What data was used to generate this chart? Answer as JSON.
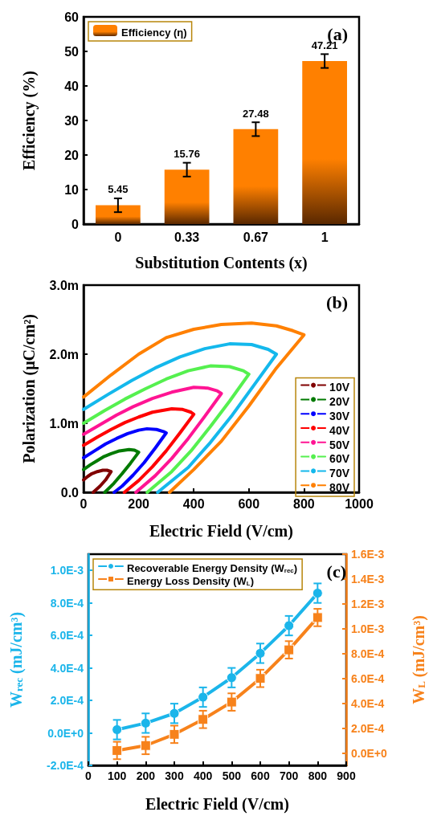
{
  "chart_data": [
    {
      "type": "bar",
      "xlabel": "Substitution Contents (x)",
      "ylabel": "Efficiency (%)",
      "categories": [
        "0",
        "0.33",
        "0.67",
        "1"
      ],
      "series": [
        {
          "name": "Efficiency (η)",
          "color": "#ff8000",
          "values": [
            5.45,
            15.76,
            27.48,
            47.21
          ],
          "errors": [
            2,
            2,
            2,
            2
          ]
        }
      ],
      "data_labels": true,
      "ylim": [
        0,
        60
      ],
      "yticks": [
        0,
        10,
        20,
        30,
        40,
        50,
        60
      ],
      "legend": "top left",
      "annotations": [
        "(a)"
      ]
    },
    {
      "type": "line",
      "xlabel": "Electric Field (V/cm)",
      "ylabel": "Polarization (μC/cm²)",
      "marker": "none",
      "series": [
        {
          "name": "10V",
          "color": "#800000",
          "x": [
            0,
            15,
            30,
            50,
            70,
            85,
            100,
            80,
            60,
            35
          ],
          "values": [
            0.18,
            0.23,
            0.27,
            0.3,
            0.32,
            0.32,
            0.3,
            0.18,
            0.09,
            0
          ]
        },
        {
          "name": "20V",
          "color": "#007a00",
          "x": [
            0,
            25,
            50,
            75,
            100,
            130,
            165,
            185,
            200,
            170,
            140,
            110,
            77
          ],
          "values": [
            0.33,
            0.4,
            0.46,
            0.52,
            0.56,
            0.6,
            0.62,
            0.61,
            0.58,
            0.42,
            0.27,
            0.13,
            0
          ]
        },
        {
          "name": "30V",
          "color": "#0000ff",
          "x": [
            0,
            40,
            80,
            120,
            160,
            200,
            230,
            265,
            290,
            300,
            260,
            220,
            180,
            140,
            111
          ],
          "values": [
            0.5,
            0.6,
            0.7,
            0.78,
            0.85,
            0.9,
            0.92,
            0.91,
            0.88,
            0.86,
            0.64,
            0.43,
            0.25,
            0.09,
            0
          ]
        },
        {
          "name": "40V",
          "color": "#ff0000",
          "x": [
            0,
            50,
            100,
            150,
            200,
            250,
            320,
            360,
            390,
            400,
            350,
            300,
            250,
            200,
            148
          ],
          "values": [
            0.68,
            0.8,
            0.91,
            1.01,
            1.09,
            1.16,
            1.21,
            1.2,
            1.16,
            1.13,
            0.86,
            0.6,
            0.37,
            0.17,
            0
          ]
        },
        {
          "name": "50V",
          "color": "#ff1493",
          "x": [
            0,
            60,
            120,
            180,
            250,
            320,
            400,
            450,
            485,
            500,
            440,
            380,
            320,
            260,
            190
          ],
          "values": [
            0.84,
            0.98,
            1.12,
            1.24,
            1.36,
            1.45,
            1.52,
            1.51,
            1.47,
            1.43,
            1.1,
            0.78,
            0.49,
            0.24,
            0
          ]
        },
        {
          "name": "60V",
          "color": "#55f04f",
          "x": [
            0,
            75,
            150,
            225,
            300,
            380,
            460,
            530,
            580,
            600,
            530,
            460,
            390,
            320,
            231
          ],
          "values": [
            1.0,
            1.18,
            1.35,
            1.5,
            1.64,
            1.76,
            1.83,
            1.82,
            1.76,
            1.71,
            1.32,
            0.95,
            0.6,
            0.3,
            0
          ]
        },
        {
          "name": "70V",
          "color": "#14b8ec",
          "x": [
            0,
            90,
            175,
            260,
            350,
            440,
            530,
            610,
            670,
            700,
            620,
            540,
            460,
            380,
            269
          ],
          "values": [
            1.2,
            1.42,
            1.62,
            1.8,
            1.96,
            2.08,
            2.15,
            2.14,
            2.07,
            2.0,
            1.56,
            1.12,
            0.72,
            0.36,
            0
          ]
        },
        {
          "name": "80V",
          "color": "#ff8000",
          "x": [
            0,
            100,
            200,
            300,
            400,
            500,
            610,
            700,
            760,
            800,
            700,
            600,
            500,
            400,
            312
          ],
          "values": [
            1.38,
            1.7,
            2.0,
            2.24,
            2.36,
            2.43,
            2.45,
            2.41,
            2.34,
            2.28,
            1.8,
            1.25,
            0.74,
            0.33,
            0
          ]
        }
      ],
      "xlim": [
        0,
        1000
      ],
      "xticks": [
        0,
        200,
        400,
        600,
        800,
        1000
      ],
      "ylim": [
        0,
        3
      ],
      "yticks": [
        {
          "value": 0,
          "label": "0.0"
        },
        {
          "value": 1,
          "label": "1.0m"
        },
        {
          "value": 2,
          "label": "2.0m"
        },
        {
          "value": 3,
          "label": "3.0m"
        }
      ],
      "legend": "bottom right",
      "annotations": [
        "(b)"
      ]
    },
    {
      "type": "line",
      "xlabel": "Electric Field (V/cm)",
      "ylabel": "W$_{rec}$ (mJ/cm³)",
      "y2label": "W$_{L}$ (mJ/cm³)",
      "x": [
        100,
        200,
        300,
        400,
        500,
        600,
        700,
        800
      ],
      "series": [
        {
          "name": "Recoverable Energy Density (W$_{rec}$)",
          "color": "#1bb5ea",
          "marker": "circle",
          "values": [
            2e-05,
            6e-05,
            0.00012,
            0.00022,
            0.00034,
            0.00049,
            0.00066,
            0.00086
          ],
          "errors": [
            6e-05,
            6e-05,
            6e-05,
            6e-05,
            6e-05,
            6e-05,
            6e-05,
            6e-05
          ]
        },
        {
          "name": "Energy Loss Density (W$_{L}$)",
          "color": "#f7821b",
          "marker": "square",
          "axis": "y2",
          "values": [
            2e-05,
            6e-05,
            0.00015,
            0.00027,
            0.00041,
            0.0006,
            0.00083,
            0.00109
          ],
          "errors": [
            7e-05,
            7e-05,
            7e-05,
            7e-05,
            7e-05,
            7e-05,
            7e-05,
            7e-05
          ]
        }
      ],
      "xlim": [
        0,
        900
      ],
      "xticks": [
        0,
        100,
        200,
        300,
        400,
        500,
        600,
        700,
        800,
        900
      ],
      "ylim": [
        -0.0002,
        0.0011
      ],
      "yticks": [
        {
          "value": -0.0002,
          "label": "-2.0E-4"
        },
        {
          "value": 0,
          "label": "0.0E+0"
        },
        {
          "value": 0.0002,
          "label": "2.0E-4"
        },
        {
          "value": 0.0004,
          "label": "4.0E-4"
        },
        {
          "value": 0.0006,
          "label": "6.0E-4"
        },
        {
          "value": 0.0008,
          "label": "8.0E-4"
        },
        {
          "value": 0.001,
          "label": "1.0E-3"
        }
      ],
      "y2lim": [
        -0.0001,
        0.0016
      ],
      "y2ticks": [
        {
          "value": 0,
          "label": "0.0E+0"
        },
        {
          "value": 0.0002,
          "label": "2.0E-4"
        },
        {
          "value": 0.0004,
          "label": "4.0E-4"
        },
        {
          "value": 0.0006,
          "label": "6.0E-4"
        },
        {
          "value": 0.0008,
          "label": "8.0E-4"
        },
        {
          "value": 0.001,
          "label": "1.0E-3"
        },
        {
          "value": 0.0012,
          "label": "1.2E-3"
        },
        {
          "value": 0.0014,
          "label": "1.4E-3"
        },
        {
          "value": 0.0016,
          "label": "1.6E-3"
        }
      ],
      "legend": "top left",
      "annotations": [
        "(c)"
      ]
    }
  ]
}
